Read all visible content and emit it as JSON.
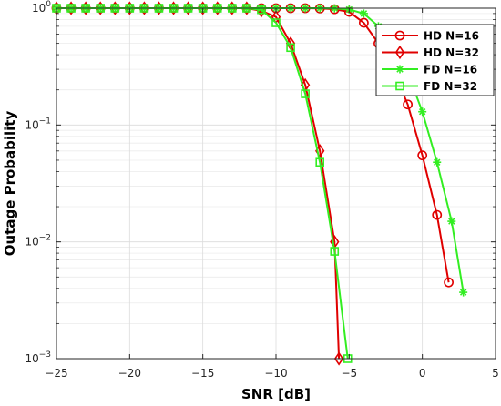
{
  "chart_data": {
    "type": "line",
    "xlabel": "SNR [dB]",
    "ylabel": "Outage Probability",
    "xlim": [
      -25,
      5
    ],
    "ylim": [
      0.001,
      1
    ],
    "yscale": "log",
    "grid": true,
    "legend_position": "top-right",
    "x_ticks": [
      -25,
      -20,
      -15,
      -10,
      -5,
      0,
      5
    ],
    "x_tick_labels": [
      "−25",
      "−20",
      "−15",
      "−10",
      "−5",
      "0",
      "5"
    ],
    "y_ticks": [
      {
        "value": 1,
        "base": "10",
        "exp": "0"
      },
      {
        "value": 0.1,
        "base": "10",
        "exp": "−1"
      },
      {
        "value": 0.01,
        "base": "10",
        "exp": "−2"
      },
      {
        "value": 0.001,
        "base": "10",
        "exp": "−3"
      }
    ],
    "series": [
      {
        "name": "HD N=16",
        "color": "#e00000",
        "marker": "circle",
        "x": [
          -25,
          -24,
          -23,
          -22,
          -21,
          -20,
          -19,
          -18,
          -17,
          -16,
          -15,
          -14,
          -13,
          -12,
          -11,
          -10,
          -9,
          -8,
          -7,
          -6,
          -5,
          -4,
          -3,
          -2,
          -1,
          0,
          1,
          1.8
        ],
        "y": [
          1,
          1,
          1,
          1,
          1,
          1,
          1,
          1,
          1,
          1,
          1,
          1,
          1,
          1,
          1,
          1,
          1,
          1,
          0.995,
          0.98,
          0.93,
          0.75,
          0.5,
          0.3,
          0.15,
          0.055,
          0.017,
          0.0045
        ]
      },
      {
        "name": "HD N=32",
        "color": "#e00000",
        "marker": "diamond",
        "x": [
          -25,
          -24,
          -23,
          -22,
          -21,
          -20,
          -19,
          -18,
          -17,
          -16,
          -15,
          -14,
          -13,
          -12,
          -11,
          -10,
          -9,
          -8,
          -7,
          -6,
          -5.7
        ],
        "y": [
          1,
          1,
          1,
          1,
          1,
          1,
          1,
          1,
          1,
          1,
          1,
          1,
          1,
          1,
          0.95,
          0.84,
          0.5,
          0.22,
          0.06,
          0.01,
          0.001
        ]
      },
      {
        "name": "FD N=16",
        "color": "#33ee22",
        "marker": "asterisk",
        "x": [
          -25,
          -24,
          -23,
          -22,
          -21,
          -20,
          -19,
          -18,
          -17,
          -16,
          -15,
          -14,
          -13,
          -12,
          -11,
          -10,
          -9,
          -8,
          -7,
          -6,
          -5,
          -4,
          -3,
          -2,
          -1,
          0,
          1,
          2,
          2.8
        ],
        "y": [
          1,
          1,
          1,
          1,
          1,
          1,
          1,
          1,
          1,
          1,
          1,
          1,
          1,
          1,
          1,
          1,
          1,
          1,
          1,
          0.995,
          0.975,
          0.9,
          0.7,
          0.48,
          0.28,
          0.13,
          0.048,
          0.015,
          0.0037
        ]
      },
      {
        "name": "FD N=32",
        "color": "#33ee22",
        "marker": "square",
        "x": [
          -25,
          -24,
          -23,
          -22,
          -21,
          -20,
          -19,
          -18,
          -17,
          -16,
          -15,
          -14,
          -13,
          -12,
          -11,
          -10,
          -9,
          -8,
          -7,
          -6,
          -5.1
        ],
        "y": [
          1,
          1,
          1,
          1,
          1,
          1,
          1,
          1,
          1,
          1,
          1,
          1,
          1,
          1,
          0.97,
          0.75,
          0.46,
          0.185,
          0.048,
          0.0083,
          0.001
        ]
      }
    ]
  }
}
